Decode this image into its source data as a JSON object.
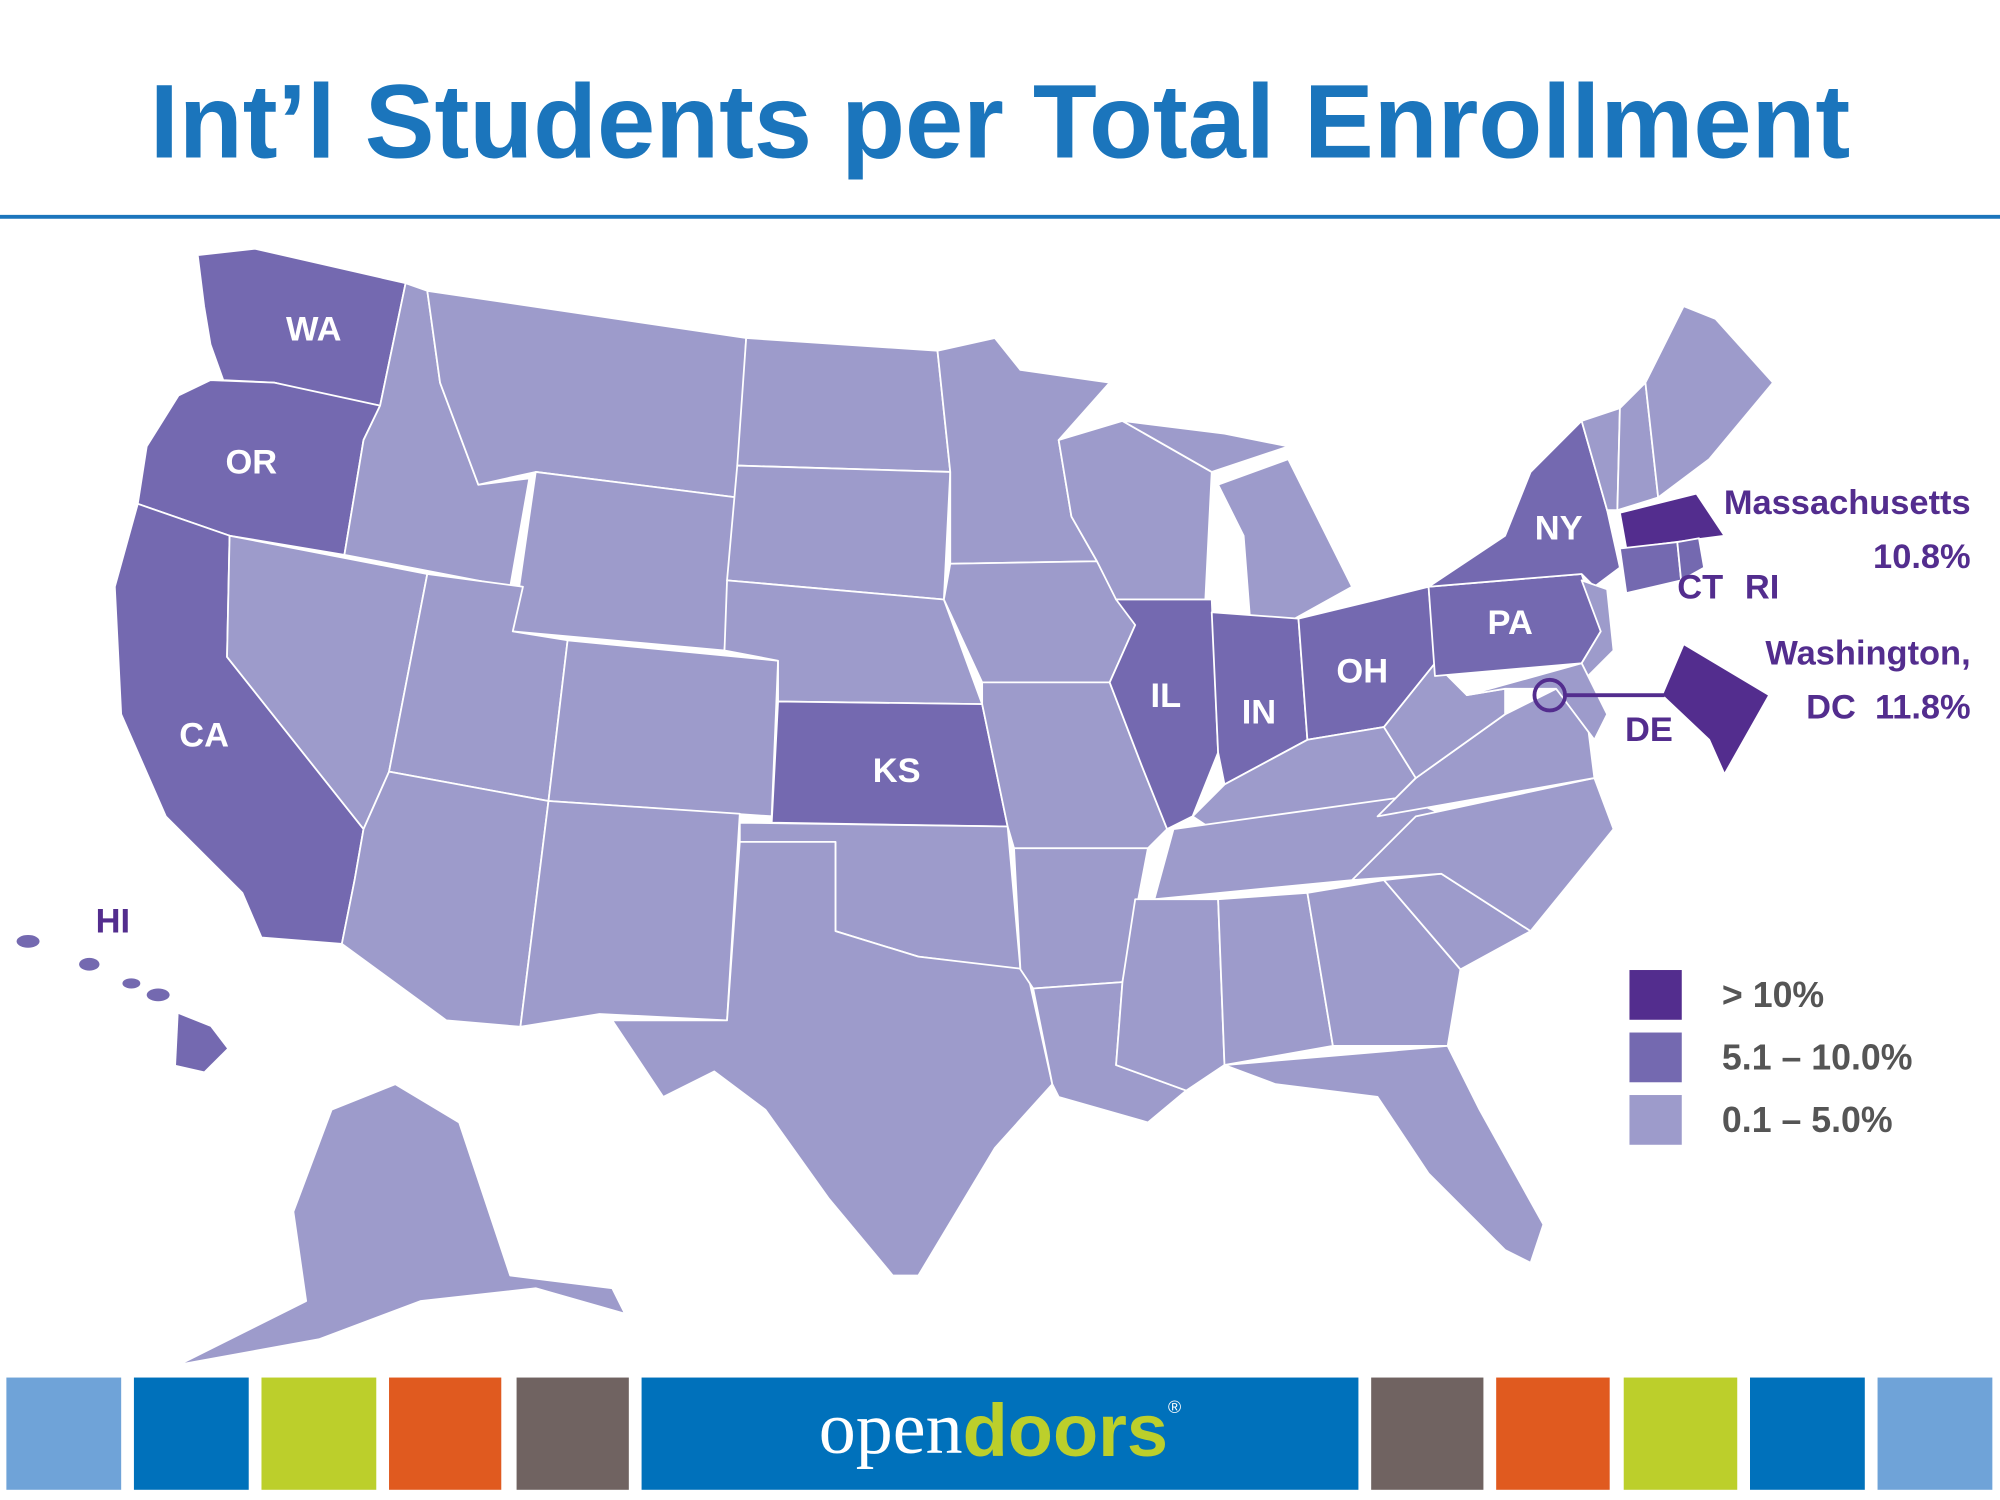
{
  "title": "Int’l Students per Total Enrollment",
  "state_labels": [
    "WA",
    "OR",
    "CA",
    "HI",
    "KS",
    "IL",
    "IN",
    "OH",
    "PA",
    "NY",
    "CT",
    "RI",
    "DE"
  ],
  "callouts": {
    "massachusetts": {
      "name": "Massachusetts",
      "value": "10.8%"
    },
    "dc": {
      "name": "Washington,",
      "value": "DC  11.8%"
    }
  },
  "legend": [
    {
      "label": "> 10%",
      "color": "#532d8e"
    },
    {
      "label": "5.1 – 10.0%",
      "color": "#7469b0"
    },
    {
      "label": "0.1 – 5.0%",
      "color": "#9d9bcb"
    }
  ],
  "logo": [
    "open",
    "doors",
    "®"
  ]
}
